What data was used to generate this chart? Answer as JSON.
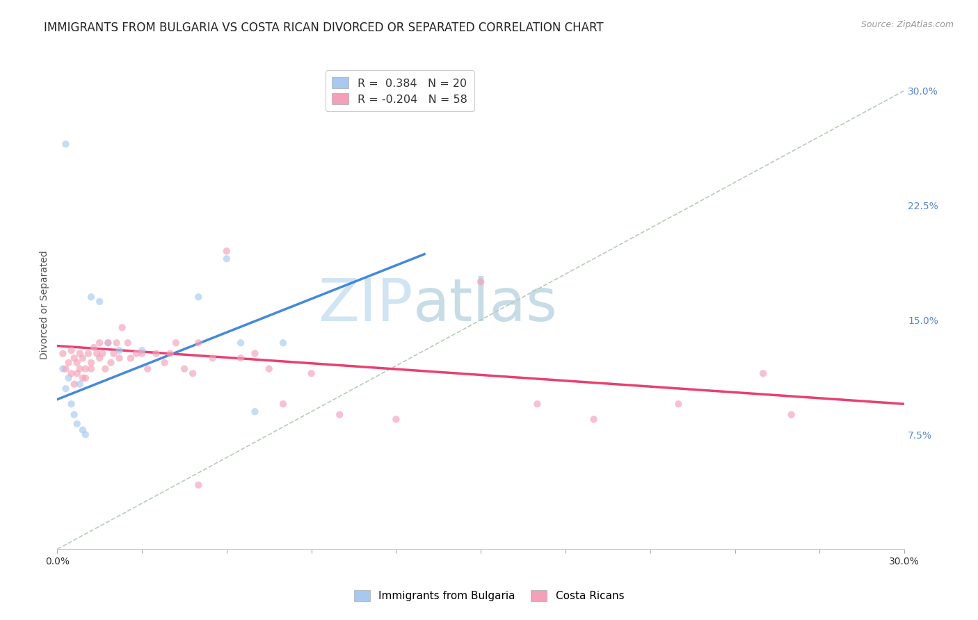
{
  "title": "IMMIGRANTS FROM BULGARIA VS COSTA RICAN DIVORCED OR SEPARATED CORRELATION CHART",
  "source": "Source: ZipAtlas.com",
  "ylabel": "Divorced or Separated",
  "right_yticks": [
    "7.5%",
    "15.0%",
    "22.5%",
    "30.0%"
  ],
  "right_ytick_vals": [
    0.075,
    0.15,
    0.225,
    0.3
  ],
  "legend_r1": "R =  0.384   N = 20",
  "legend_r2": "R = -0.204   N = 58",
  "blue_scatter_x": [
    0.002,
    0.003,
    0.004,
    0.005,
    0.006,
    0.007,
    0.008,
    0.009,
    0.012,
    0.015,
    0.018,
    0.022,
    0.03,
    0.05,
    0.06,
    0.065,
    0.07,
    0.08,
    0.003,
    0.01
  ],
  "blue_scatter_y": [
    0.118,
    0.105,
    0.112,
    0.095,
    0.088,
    0.082,
    0.108,
    0.078,
    0.165,
    0.162,
    0.135,
    0.13,
    0.13,
    0.165,
    0.19,
    0.135,
    0.09,
    0.135,
    0.265,
    0.075
  ],
  "pink_scatter_x": [
    0.002,
    0.003,
    0.004,
    0.005,
    0.005,
    0.006,
    0.006,
    0.007,
    0.007,
    0.008,
    0.008,
    0.009,
    0.009,
    0.01,
    0.01,
    0.011,
    0.012,
    0.012,
    0.013,
    0.014,
    0.015,
    0.015,
    0.016,
    0.017,
    0.018,
    0.019,
    0.02,
    0.021,
    0.022,
    0.023,
    0.025,
    0.026,
    0.028,
    0.03,
    0.032,
    0.035,
    0.038,
    0.04,
    0.042,
    0.045,
    0.048,
    0.05,
    0.055,
    0.06,
    0.065,
    0.07,
    0.075,
    0.08,
    0.09,
    0.1,
    0.12,
    0.15,
    0.17,
    0.19,
    0.22,
    0.25,
    0.26,
    0.05
  ],
  "pink_scatter_y": [
    0.128,
    0.118,
    0.122,
    0.13,
    0.115,
    0.125,
    0.108,
    0.122,
    0.115,
    0.128,
    0.118,
    0.125,
    0.112,
    0.118,
    0.112,
    0.128,
    0.118,
    0.122,
    0.132,
    0.128,
    0.135,
    0.125,
    0.128,
    0.118,
    0.135,
    0.122,
    0.128,
    0.135,
    0.125,
    0.145,
    0.135,
    0.125,
    0.128,
    0.128,
    0.118,
    0.128,
    0.122,
    0.128,
    0.135,
    0.118,
    0.115,
    0.135,
    0.125,
    0.195,
    0.125,
    0.128,
    0.118,
    0.095,
    0.115,
    0.088,
    0.085,
    0.175,
    0.095,
    0.085,
    0.095,
    0.115,
    0.088,
    0.042
  ],
  "blue_line_x": [
    0.0,
    0.13
  ],
  "blue_line_y": [
    0.098,
    0.193
  ],
  "pink_line_x": [
    0.0,
    0.3
  ],
  "pink_line_y": [
    0.133,
    0.095
  ],
  "dashed_line_x": [
    0.0,
    0.3
  ],
  "dashed_line_y": [
    0.0,
    0.3
  ],
  "xlim": [
    0.0,
    0.3
  ],
  "ylim": [
    0.0,
    0.32
  ],
  "scatter_size": 55,
  "scatter_alpha": 0.65,
  "blue_color": "#a8c8f0",
  "pink_color": "#f4a0b8",
  "dashed_color": "#b8ccb8",
  "blue_line_color": "#4488dd",
  "pink_line_color": "#e84070",
  "background_color": "#ffffff",
  "grid_color": "#e4e4e4",
  "title_fontsize": 12,
  "label_fontsize": 10,
  "tick_fontsize": 10,
  "watermark_zip": "ZIP",
  "watermark_atlas": "atlas",
  "watermark_color_zip": "#d0e4f4",
  "watermark_color_atlas": "#c8dce8",
  "watermark_fontsize": 62
}
